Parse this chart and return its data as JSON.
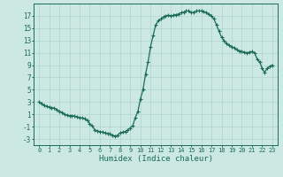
{
  "x": [
    0,
    0.25,
    0.5,
    0.75,
    1,
    1.25,
    1.5,
    1.75,
    2,
    2.25,
    2.5,
    2.75,
    3,
    3.25,
    3.5,
    3.75,
    4,
    4.25,
    4.5,
    4.75,
    5,
    5.25,
    5.5,
    5.75,
    6,
    6.25,
    6.5,
    6.75,
    7,
    7.25,
    7.5,
    7.75,
    8,
    8.25,
    8.5,
    8.75,
    9,
    9.25,
    9.5,
    9.75,
    10,
    10.25,
    10.5,
    10.75,
    11,
    11.25,
    11.5,
    11.75,
    12,
    12.25,
    12.5,
    12.75,
    13,
    13.25,
    13.5,
    13.75,
    14,
    14.25,
    14.5,
    14.75,
    15,
    15.25,
    15.5,
    15.75,
    16,
    16.25,
    16.5,
    16.75,
    17,
    17.25,
    17.5,
    17.75,
    18,
    18.25,
    18.5,
    18.75,
    19,
    19.25,
    19.5,
    19.75,
    20,
    20.25,
    20.5,
    20.75,
    21,
    21.25,
    21.5,
    21.75,
    22,
    22.25,
    22.5,
    22.75,
    23
  ],
  "y": [
    3.0,
    2.8,
    2.5,
    2.3,
    2.2,
    2.1,
    2.0,
    1.8,
    1.5,
    1.3,
    1.0,
    0.9,
    0.8,
    0.8,
    0.7,
    0.6,
    0.5,
    0.4,
    0.3,
    0.0,
    -0.5,
    -0.9,
    -1.5,
    -1.7,
    -1.8,
    -1.9,
    -2.0,
    -2.1,
    -2.2,
    -2.4,
    -2.5,
    -2.4,
    -2.0,
    -1.9,
    -1.8,
    -1.5,
    -1.2,
    -0.8,
    0.5,
    1.5,
    3.5,
    5.0,
    7.5,
    9.5,
    12.0,
    13.8,
    15.5,
    16.2,
    16.5,
    16.8,
    17.0,
    17.1,
    17.0,
    17.1,
    17.2,
    17.3,
    17.5,
    17.6,
    17.8,
    17.8,
    17.5,
    17.6,
    17.8,
    17.8,
    17.8,
    17.7,
    17.5,
    17.3,
    17.0,
    16.5,
    15.5,
    14.5,
    13.5,
    13.0,
    12.5,
    12.2,
    12.0,
    11.8,
    11.5,
    11.3,
    11.2,
    11.1,
    11.0,
    11.1,
    11.2,
    11.0,
    10.0,
    9.5,
    8.5,
    7.8,
    8.5,
    8.8,
    9.0
  ],
  "xlabel": "Humidex (Indice chaleur)",
  "xlim": [
    -0.5,
    23.5
  ],
  "ylim": [
    -4,
    19
  ],
  "yticks": [
    -3,
    -1,
    1,
    3,
    5,
    7,
    9,
    11,
    13,
    15,
    17
  ],
  "xticks": [
    0,
    1,
    2,
    3,
    4,
    5,
    6,
    7,
    8,
    9,
    10,
    11,
    12,
    13,
    14,
    15,
    16,
    17,
    18,
    19,
    20,
    21,
    22,
    23
  ],
  "line_color": "#1a6b5a",
  "marker": "+",
  "bg_color": "#cce8e3",
  "grid_color": "#afd4cc",
  "axis_color": "#1a6b5a",
  "tick_label_color": "#1a6b5a",
  "xlabel_color": "#1a6b5a",
  "linewidth": 0.9,
  "markersize": 3.0
}
